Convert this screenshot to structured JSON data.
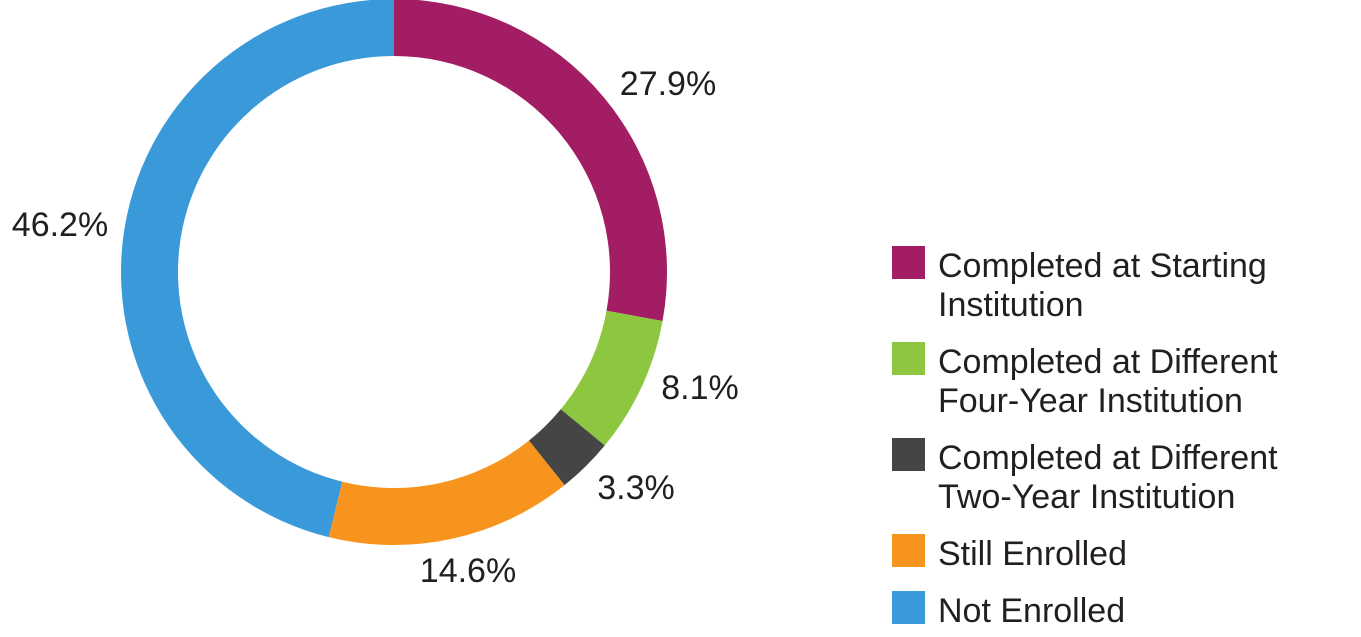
{
  "chart_data": {
    "type": "pie",
    "donut": true,
    "start": "12 o'clock",
    "direction": "clockwise",
    "legend": "right",
    "slices": [
      {
        "label": "Completed at Starting Institution",
        "legend_lines": [
          "Completed at Starting",
          "Institution"
        ],
        "value": 27.9,
        "value_label": "27.9%",
        "color": "#a21d63"
      },
      {
        "label": "Completed at Different Four-Year Institution",
        "legend_lines": [
          "Completed at Different",
          "Four-Year Institution"
        ],
        "value": 8.1,
        "value_label": "8.1%",
        "color": "#8dc63f"
      },
      {
        "label": "Completed at Different Two-Year Institution",
        "legend_lines": [
          "Completed at Different",
          "Two-Year Institution"
        ],
        "value": 3.3,
        "value_label": "3.3%",
        "color": "#454545"
      },
      {
        "label": "Still Enrolled",
        "legend_lines": [
          "Still Enrolled"
        ],
        "value": 14.6,
        "value_label": "14.6%",
        "color": "#f7941d"
      },
      {
        "label": "Not Enrolled",
        "legend_lines": [
          "Not Enrolled"
        ],
        "value": 46.2,
        "value_label": "46.2%",
        "color": "#3a9ad9"
      }
    ]
  }
}
